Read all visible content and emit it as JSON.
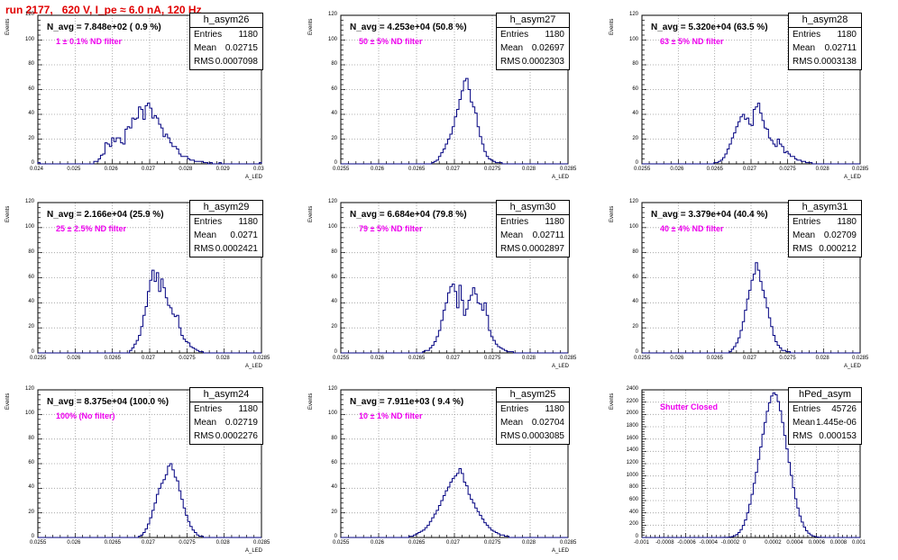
{
  "header": {
    "title": "run 2177,   620 V, I_pe ≈ 6.0 nA, 120 Hz"
  },
  "colors": {
    "histogram": "#000080",
    "title_red": "#e00000",
    "filter_magenta": "#ee00ee",
    "grid": "#9a9a9a"
  },
  "chart_data": [
    {
      "type": "histogram",
      "name": "h_asym26",
      "navg": "N_avg = 7.848e+02 ( 0.9 %)",
      "filter": "1 ± 0.1% ND filter",
      "stats": {
        "entries": "1180",
        "mean": "0.02715",
        "rms": "0.0007098"
      },
      "xlabel": "A_LED",
      "ylabel": "Events",
      "xlim": [
        0.024,
        0.03
      ],
      "ylim": [
        0,
        120
      ],
      "xticks": [
        "0.024",
        "0.025",
        "0.026",
        "0.027",
        "0.028",
        "0.029",
        "0.03"
      ],
      "yticks": [
        "0",
        "20",
        "40",
        "60",
        "80",
        "100",
        "120"
      ],
      "values": [
        1,
        0,
        0,
        0,
        0,
        0,
        0,
        0,
        0,
        0,
        0,
        0,
        0,
        0,
        0,
        0,
        0,
        0,
        0,
        0,
        0,
        0,
        0,
        0,
        0,
        2,
        2,
        4,
        7,
        8,
        17,
        16,
        14,
        21,
        18,
        21,
        21,
        17,
        16,
        28,
        30,
        29,
        37,
        36,
        37,
        46,
        44,
        36,
        47,
        49,
        45,
        37,
        39,
        37,
        32,
        29,
        22,
        24,
        21,
        17,
        14,
        14,
        12,
        8,
        6,
        6,
        6,
        4,
        3,
        3,
        2,
        2,
        2,
        2,
        1,
        1,
        0,
        1,
        0,
        0,
        0,
        1,
        0,
        0,
        0,
        0,
        0,
        0,
        0,
        0,
        0,
        0,
        0,
        0,
        0,
        0,
        0,
        0,
        0,
        1
      ]
    },
    {
      "type": "histogram",
      "name": "h_asym27",
      "navg": "N_avg = 4.253e+04 (50.8 %)",
      "filter": "50 ± 5% ND filter",
      "stats": {
        "entries": "1180",
        "mean": "0.02697",
        "rms": "0.0002303"
      },
      "xlabel": "A_LED",
      "ylabel": "Events",
      "xlim": [
        0.0255,
        0.0285
      ],
      "ylim": [
        0,
        120
      ],
      "xticks": [
        "0.0255",
        "0.026",
        "0.0265",
        "0.027",
        "0.0275",
        "0.028",
        "0.0285"
      ],
      "yticks": [
        "0",
        "20",
        "40",
        "60",
        "80",
        "100",
        "120"
      ],
      "values": [
        0,
        0,
        0,
        0,
        0,
        0,
        0,
        0,
        0,
        0,
        0,
        0,
        0,
        0,
        0,
        0,
        0,
        0,
        0,
        0,
        0,
        0,
        0,
        0,
        0,
        0,
        0,
        0,
        0,
        0,
        0,
        0,
        0,
        0,
        0,
        0,
        0,
        0,
        0,
        0,
        1,
        2,
        3,
        6,
        9,
        12,
        16,
        20,
        24,
        30,
        38,
        44,
        52,
        59,
        67,
        69,
        60,
        50,
        46,
        41,
        30,
        22,
        16,
        10,
        6,
        4,
        3,
        2,
        1,
        1,
        1,
        0,
        0,
        0,
        0,
        0,
        0,
        0,
        0,
        0,
        0,
        0,
        0,
        0,
        0,
        0,
        0,
        0,
        0,
        0,
        0,
        0,
        0,
        0,
        0,
        0,
        0,
        0,
        0,
        0
      ]
    },
    {
      "type": "histogram",
      "name": "h_asym28",
      "navg": "N_avg = 5.320e+04 (63.5 %)",
      "filter": "63 ± 5% ND filter",
      "stats": {
        "entries": "1180",
        "mean": "0.02711",
        "rms": "0.0003138"
      },
      "xlabel": "A_LED",
      "ylabel": "Events",
      "xlim": [
        0.0255,
        0.0285
      ],
      "ylim": [
        0,
        120
      ],
      "xticks": [
        "0.0255",
        "0.026",
        "0.0265",
        "0.027",
        "0.0275",
        "0.028",
        "0.0285"
      ],
      "yticks": [
        "0",
        "20",
        "40",
        "60",
        "80",
        "100",
        "120"
      ],
      "values": [
        0,
        0,
        0,
        0,
        0,
        0,
        0,
        0,
        0,
        0,
        0,
        0,
        0,
        0,
        0,
        0,
        0,
        0,
        0,
        0,
        0,
        0,
        0,
        0,
        0,
        0,
        0,
        0,
        0,
        0,
        0,
        0,
        0,
        1,
        1,
        2,
        3,
        5,
        8,
        12,
        16,
        21,
        25,
        30,
        34,
        38,
        40,
        36,
        37,
        32,
        31,
        44,
        46,
        49,
        41,
        35,
        29,
        28,
        21,
        19,
        16,
        14,
        20,
        16,
        14,
        9,
        10,
        8,
        6,
        6,
        4,
        3,
        3,
        2,
        2,
        1,
        1,
        1,
        0,
        0,
        0,
        0,
        0,
        0,
        0,
        0,
        0,
        0,
        0,
        0,
        0,
        0,
        0,
        0,
        0,
        0,
        0,
        0,
        0,
        0
      ]
    },
    {
      "type": "histogram",
      "name": "h_asym29",
      "navg": "N_avg = 2.166e+04 (25.9 %)",
      "filter": "25 ± 2.5% ND filter",
      "stats": {
        "entries": "1180",
        "mean": "0.0271",
        "rms": "0.0002421"
      },
      "xlabel": "A_LED",
      "ylabel": "Events",
      "xlim": [
        0.0255,
        0.0285
      ],
      "ylim": [
        0,
        120
      ],
      "xticks": [
        "0.0255",
        "0.026",
        "0.0265",
        "0.027",
        "0.0275",
        "0.028",
        "0.0285"
      ],
      "yticks": [
        "0",
        "20",
        "40",
        "60",
        "80",
        "100",
        "120"
      ],
      "values": [
        0,
        0,
        0,
        0,
        0,
        0,
        0,
        0,
        0,
        0,
        0,
        0,
        0,
        0,
        0,
        0,
        0,
        0,
        0,
        0,
        0,
        0,
        0,
        0,
        0,
        0,
        0,
        0,
        0,
        0,
        0,
        0,
        0,
        0,
        0,
        0,
        0,
        0,
        0,
        0,
        0,
        2,
        4,
        7,
        10,
        14,
        21,
        30,
        37,
        49,
        58,
        66,
        57,
        64,
        49,
        59,
        52,
        44,
        38,
        36,
        31,
        29,
        30,
        20,
        14,
        11,
        9,
        8,
        5,
        4,
        3,
        2,
        1,
        1,
        0,
        0,
        0,
        0,
        0,
        0,
        0,
        0,
        0,
        0,
        0,
        0,
        0,
        0,
        0,
        0,
        0,
        0,
        0,
        0,
        0,
        0,
        0,
        0,
        0,
        0
      ]
    },
    {
      "type": "histogram",
      "name": "h_asym30",
      "navg": "N_avg = 6.684e+04 (79.8 %)",
      "filter": "79 ± 5% ND filter",
      "stats": {
        "entries": "1180",
        "mean": "0.02711",
        "rms": "0.0002897"
      },
      "xlabel": "A_LED",
      "ylabel": "Events",
      "xlim": [
        0.0255,
        0.0285
      ],
      "ylim": [
        0,
        120
      ],
      "xticks": [
        "0.0255",
        "0.026",
        "0.0265",
        "0.027",
        "0.0275",
        "0.028",
        "0.0285"
      ],
      "yticks": [
        "0",
        "20",
        "40",
        "60",
        "80",
        "100",
        "120"
      ],
      "values": [
        0,
        0,
        0,
        0,
        0,
        0,
        0,
        0,
        0,
        0,
        0,
        0,
        0,
        0,
        0,
        0,
        0,
        0,
        0,
        0,
        0,
        0,
        0,
        0,
        0,
        0,
        0,
        0,
        0,
        0,
        0,
        0,
        0,
        0,
        0,
        0,
        1,
        2,
        2,
        4,
        6,
        9,
        13,
        18,
        26,
        34,
        40,
        48,
        53,
        55,
        49,
        36,
        54,
        42,
        30,
        35,
        42,
        46,
        52,
        47,
        40,
        39,
        34,
        40,
        30,
        18,
        13,
        10,
        7,
        5,
        4,
        3,
        2,
        1,
        1,
        1,
        0,
        0,
        0,
        0,
        0,
        0,
        0,
        0,
        0,
        0,
        0,
        0,
        0,
        0,
        0,
        0,
        0,
        0,
        0,
        0,
        0,
        0,
        0,
        0
      ]
    },
    {
      "type": "histogram",
      "name": "h_asym31",
      "navg": "N_avg = 3.379e+04 (40.4 %)",
      "filter": "40 ± 4% ND filter",
      "stats": {
        "entries": "1180",
        "mean": "0.02709",
        "rms": "0.000212"
      },
      "xlabel": "A_LED",
      "ylabel": "Events",
      "xlim": [
        0.0255,
        0.0285
      ],
      "ylim": [
        0,
        120
      ],
      "xticks": [
        "0.0255",
        "0.026",
        "0.0265",
        "0.027",
        "0.0275",
        "0.028",
        "0.0285"
      ],
      "yticks": [
        "0",
        "20",
        "40",
        "60",
        "80",
        "100",
        "120"
      ],
      "values": [
        0,
        0,
        0,
        0,
        0,
        0,
        0,
        0,
        0,
        0,
        0,
        0,
        0,
        0,
        0,
        0,
        0,
        0,
        0,
        0,
        0,
        0,
        0,
        0,
        0,
        0,
        0,
        0,
        0,
        0,
        0,
        0,
        0,
        0,
        0,
        0,
        0,
        0,
        0,
        0,
        1,
        3,
        5,
        8,
        12,
        18,
        25,
        34,
        43,
        50,
        58,
        63,
        72,
        66,
        57,
        50,
        44,
        36,
        28,
        21,
        14,
        9,
        6,
        4,
        2,
        2,
        1,
        1,
        0,
        0,
        0,
        0,
        0,
        0,
        0,
        0,
        0,
        0,
        0,
        0,
        0,
        0,
        0,
        0,
        0,
        0,
        0,
        0,
        0,
        0,
        0,
        0,
        0,
        0,
        0,
        0,
        0,
        0,
        0,
        0
      ]
    },
    {
      "type": "histogram",
      "name": "h_asym24",
      "navg": "N_avg = 8.375e+04 (100.0 %)",
      "filter": "100% (No filter)",
      "stats": {
        "entries": "1180",
        "mean": "0.02719",
        "rms": "0.0002276"
      },
      "xlabel": "A_LED",
      "ylabel": "Events",
      "xlim": [
        0.0255,
        0.0285
      ],
      "ylim": [
        0,
        120
      ],
      "xticks": [
        "0.0255",
        "0.026",
        "0.0265",
        "0.027",
        "0.0275",
        "0.028",
        "0.0285"
      ],
      "yticks": [
        "0",
        "20",
        "40",
        "60",
        "80",
        "100",
        "120"
      ],
      "values": [
        0,
        0,
        0,
        0,
        0,
        0,
        0,
        0,
        0,
        0,
        0,
        0,
        0,
        0,
        0,
        0,
        0,
        0,
        0,
        0,
        0,
        0,
        0,
        0,
        0,
        0,
        0,
        0,
        0,
        0,
        0,
        0,
        0,
        0,
        0,
        0,
        0,
        0,
        0,
        0,
        0,
        0,
        0,
        0,
        0,
        1,
        2,
        4,
        7,
        11,
        16,
        22,
        28,
        35,
        40,
        44,
        47,
        51,
        58,
        60,
        55,
        49,
        46,
        38,
        31,
        24,
        18,
        13,
        9,
        6,
        4,
        2,
        1,
        1,
        0,
        0,
        0,
        0,
        0,
        0,
        0,
        0,
        0,
        0,
        0,
        0,
        0,
        0,
        0,
        0,
        0,
        0,
        0,
        0,
        0,
        0,
        0,
        0,
        0,
        0
      ]
    },
    {
      "type": "histogram",
      "name": "h_asym25",
      "navg": "N_avg = 7.911e+03 ( 9.4 %)",
      "filter": "10 ± 1% ND filter",
      "stats": {
        "entries": "1180",
        "mean": "0.02704",
        "rms": "0.0003085"
      },
      "xlabel": "A_LED",
      "ylabel": "Events",
      "xlim": [
        0.0255,
        0.0285
      ],
      "ylim": [
        0,
        120
      ],
      "xticks": [
        "0.0255",
        "0.026",
        "0.0265",
        "0.027",
        "0.0275",
        "0.028",
        "0.0285"
      ],
      "yticks": [
        "0",
        "20",
        "40",
        "60",
        "80",
        "100",
        "120"
      ],
      "values": [
        0,
        0,
        0,
        0,
        0,
        0,
        0,
        0,
        0,
        0,
        0,
        0,
        0,
        0,
        0,
        0,
        0,
        0,
        0,
        0,
        0,
        0,
        0,
        0,
        0,
        0,
        0,
        0,
        0,
        0,
        1,
        1,
        2,
        3,
        4,
        5,
        6,
        8,
        10,
        13,
        16,
        19,
        22,
        26,
        30,
        34,
        38,
        41,
        45,
        48,
        50,
        52,
        56,
        52,
        45,
        42,
        35,
        31,
        28,
        24,
        21,
        18,
        15,
        12,
        10,
        8,
        6,
        5,
        4,
        3,
        2,
        2,
        1,
        1,
        0,
        0,
        0,
        0,
        0,
        0,
        0,
        0,
        0,
        0,
        0,
        0,
        0,
        0,
        0,
        0,
        0,
        0,
        0,
        0,
        0,
        0,
        0,
        0,
        0,
        0
      ]
    },
    {
      "type": "histogram",
      "name": "hPed_asym",
      "navg": "",
      "filter": "Shutter Closed",
      "stats": {
        "entries": "45726",
        "mean": "1.445e-06",
        "rms": "0.000153"
      },
      "xlabel": "",
      "ylabel": "Events",
      "xlim": [
        -0.001,
        0.001
      ],
      "ylim": [
        0,
        2400
      ],
      "xticks": [
        "-0.001",
        "-0.0008",
        "-0.0006",
        "-0.0004",
        "-0.0002",
        "0",
        "0.0002",
        "0.0004",
        "0.0006",
        "0.0008",
        "0.001"
      ],
      "yticks": [
        "0",
        "200",
        "400",
        "600",
        "800",
        "1000",
        "1200",
        "1400",
        "1600",
        "1800",
        "2000",
        "2200",
        "2400"
      ],
      "values": [
        0,
        0,
        0,
        0,
        0,
        0,
        0,
        0,
        0,
        0,
        0,
        0,
        0,
        0,
        0,
        0,
        0,
        0,
        0,
        0,
        0,
        0,
        0,
        0,
        0,
        0,
        0,
        0,
        0,
        0,
        0,
        0,
        0,
        0,
        0,
        0,
        0,
        1,
        2,
        4,
        8,
        15,
        28,
        48,
        80,
        128,
        196,
        285,
        400,
        540,
        700,
        880,
        1060,
        1270,
        1470,
        1680,
        1870,
        2050,
        2190,
        2300,
        2350,
        2320,
        2210,
        2060,
        1870,
        1660,
        1440,
        1220,
        1010,
        810,
        630,
        480,
        350,
        250,
        170,
        110,
        70,
        42,
        25,
        14,
        8,
        4,
        2,
        1,
        0,
        0,
        0,
        0,
        0,
        0,
        0,
        0,
        0,
        0,
        0,
        0,
        0,
        0,
        0,
        0
      ]
    }
  ]
}
